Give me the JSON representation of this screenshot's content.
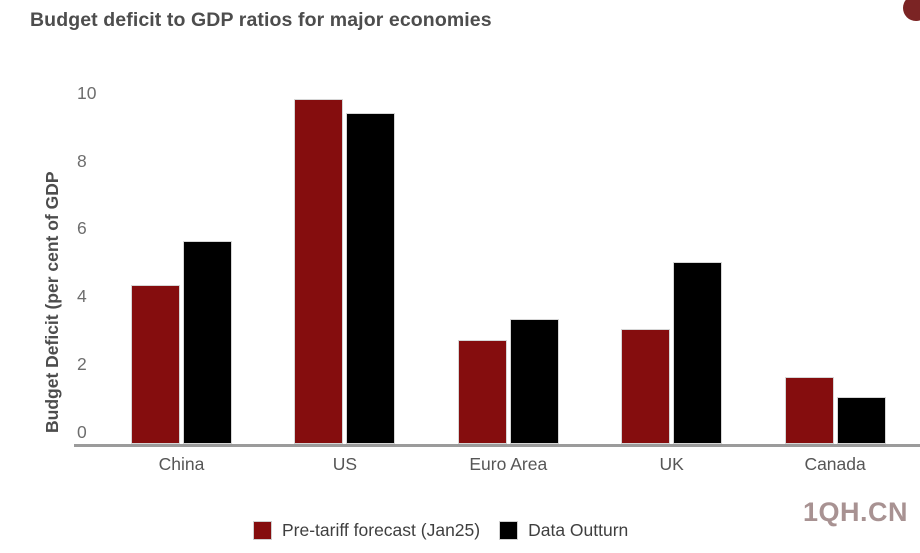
{
  "page": {
    "watermark": "1QH.CN"
  },
  "chart_data": {
    "type": "bar",
    "title": "Budget deficit to GDP ratios for major economies",
    "ylabel": "Budget Deficit (per cent of GDP",
    "categories": [
      "China",
      "US",
      "Euro Area",
      "UK",
      "Canada"
    ],
    "series": [
      {
        "name": "Pre-tariff forecast (Jan25)",
        "color": "#850d0e",
        "values": [
          4.7,
          10.2,
          3.1,
          3.4,
          2.0
        ]
      },
      {
        "name": "Data Outturn",
        "color": "#000000",
        "values": [
          6.0,
          9.8,
          3.7,
          5.4,
          1.4
        ]
      }
    ],
    "yticks": [
      0,
      2,
      4,
      6,
      8,
      10
    ],
    "ylim": [
      0,
      10.2
    ],
    "grid": false,
    "legend_position": "bottom"
  }
}
